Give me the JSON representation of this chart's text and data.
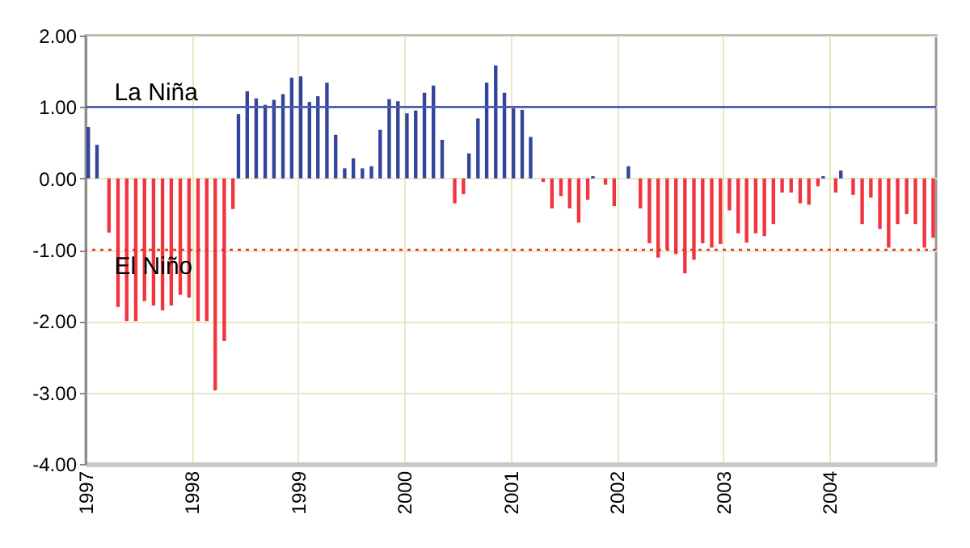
{
  "chart_data": {
    "type": "bar",
    "x": [
      "1997-01-16",
      "1997-02-15",
      "1997-03-16",
      "1997-04-16",
      "1997-05-16",
      "1997-06-16",
      "1997-07-16",
      "1997-08-16",
      "1997-09-16",
      "1997-10-16",
      "1997-11-16",
      "1997-12-16",
      "1998-01-16",
      "1998-02-15",
      "1998-03-16",
      "1998-04-16",
      "1998-05-16",
      "1998-06-16",
      "1998-07-16",
      "1998-08-16",
      "1998-09-16",
      "1998-10-16",
      "1998-11-16",
      "1998-12-16",
      "1999-01-16",
      "1999-02-15",
      "1999-03-16",
      "1999-04-16",
      "1999-05-16",
      "1999-06-16",
      "1999-07-16",
      "1999-08-16",
      "1999-09-16",
      "1999-10-16",
      "1999-11-16",
      "1999-12-16",
      "2000-01-16",
      "2000-02-15",
      "2000-03-16",
      "2000-04-16",
      "2000-05-16",
      "2000-06-16",
      "2000-07-16",
      "2000-08-16",
      "2000-09-16",
      "2000-10-16",
      "2000-11-16",
      "2000-12-16",
      "2001-01-16",
      "2001-02-15",
      "2001-03-16",
      "2001-04-16",
      "2001-05-16",
      "2001-06-16",
      "2001-07-16",
      "2001-08-16",
      "2001-09-16",
      "2001-10-16",
      "2001-11-16",
      "2001-12-16",
      "2002-01-16",
      "2002-02-15",
      "2002-03-16",
      "2002-04-16",
      "2002-05-16",
      "2002-06-16",
      "2002-07-16",
      "2002-08-16",
      "2002-09-16",
      "2002-10-16",
      "2002-11-16",
      "2002-12-16",
      "2003-01-16",
      "2003-02-15",
      "2003-03-16",
      "2003-04-16",
      "2003-05-16",
      "2003-06-16",
      "2003-07-16",
      "2003-08-16",
      "2003-09-16",
      "2003-10-16",
      "2003-11-16",
      "2003-12-16",
      "2004-01-16",
      "2004-02-15",
      "2004-03-16",
      "2004-04-16",
      "2004-05-16",
      "2004-06-16",
      "2004-07-16",
      "2004-08-16",
      "2004-09-16",
      "2004-10-16",
      "2004-11-16",
      "2004-12-16"
    ],
    "series": [
      {
        "color": "#34449b",
        "values": [
          0.72,
          0.47,
          null,
          null,
          null,
          null,
          null,
          null,
          null,
          null,
          null,
          null,
          null,
          null,
          null,
          null,
          null,
          0.9,
          1.22,
          1.12,
          1.03,
          1.1,
          1.18,
          1.41,
          1.43,
          1.07,
          1.15,
          1.34,
          0.61,
          0.14,
          0.28,
          0.14,
          0.17,
          0.68,
          1.11,
          1.08,
          0.91,
          0.95,
          1.2,
          1.3,
          0.54,
          null,
          null,
          0.35,
          0.84,
          1.34,
          1.58,
          1.2,
          0.98,
          0.96,
          0.58,
          null,
          null,
          null,
          null,
          null,
          null,
          0.03,
          null,
          null,
          0,
          0.17,
          null,
          null,
          null,
          null,
          null,
          null,
          null,
          null,
          null,
          null,
          null,
          null,
          null,
          null,
          null,
          null,
          null,
          null,
          null,
          null,
          null,
          0.03,
          null,
          0.11,
          null,
          null,
          null,
          null,
          null,
          null,
          null,
          null,
          null,
          null
        ]
      },
      {
        "color": "#f2343f",
        "values": [
          null,
          null,
          -0.76,
          -1.8,
          -2.0,
          -2.0,
          -1.72,
          -1.78,
          -1.85,
          -1.78,
          -1.63,
          -1.67,
          -2.0,
          -2.0,
          -2.97,
          -2.28,
          -0.43,
          null,
          null,
          null,
          null,
          null,
          null,
          null,
          null,
          null,
          null,
          null,
          null,
          null,
          null,
          null,
          null,
          null,
          null,
          null,
          null,
          null,
          null,
          null,
          null,
          -0.35,
          -0.22,
          null,
          null,
          null,
          null,
          null,
          null,
          null,
          null,
          -0.05,
          -0.42,
          -0.25,
          -0.42,
          -0.62,
          -0.3,
          null,
          -0.09,
          -0.39,
          null,
          null,
          -0.42,
          -0.91,
          -1.11,
          -1.0,
          -1.06,
          -1.33,
          -1.14,
          -0.91,
          -0.97,
          -0.92,
          -0.45,
          -0.77,
          -0.9,
          -0.77,
          -0.81,
          -0.64,
          -0.2,
          -0.2,
          -0.35,
          -0.37,
          -0.11,
          null,
          -0.2,
          null,
          -0.23,
          -0.64,
          -0.27,
          -0.71,
          -0.97,
          -0.64,
          -0.5,
          -0.64,
          -0.97,
          -0.83
        ]
      }
    ],
    "xlim": [
      "1997-01",
      "2005-01"
    ],
    "xticks": [
      "1997",
      "1998",
      "1999",
      "2000",
      "2001",
      "2002",
      "2003",
      "2004"
    ],
    "ylim": [
      -4,
      2
    ],
    "yticks": [
      {
        "value": -4,
        "label": "-4.00"
      },
      {
        "value": -3,
        "label": "-3.00"
      },
      {
        "value": -2,
        "label": "-2.00"
      },
      {
        "value": -1,
        "label": "-1.00"
      },
      {
        "value": 0,
        "label": "0.00"
      },
      {
        "value": 1,
        "label": "1.00"
      },
      {
        "value": 2,
        "label": "2.00"
      }
    ],
    "grid": true,
    "ref_lines": [
      {
        "axis": "y",
        "value": 1,
        "label": "La Niña",
        "color": "#4a5cb0",
        "line_style": "solid"
      },
      {
        "axis": "y",
        "value": -1,
        "label": "El Niño",
        "color": "#e03030",
        "line_style": "dotted"
      }
    ]
  }
}
